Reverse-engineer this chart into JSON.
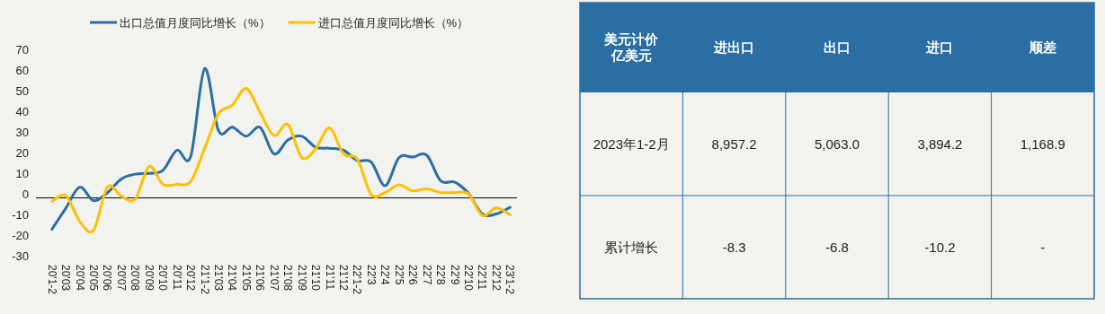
{
  "chart_data": [
    {
      "type": "line",
      "categories": [
        "20'1-2",
        "20'03",
        "20'04",
        "20'05",
        "20'06",
        "20'07",
        "20'08",
        "20'09",
        "20'10",
        "20'11",
        "20'12",
        "21'1-2",
        "21'03",
        "21'04",
        "21'05",
        "21'06",
        "21'07",
        "21'08",
        "21'09",
        "21'10",
        "21'11",
        "21'12",
        "22'1-2",
        "22'3",
        "22'4",
        "22'5",
        "22'6",
        "22'7",
        "22'8",
        "22'9",
        "22'10",
        "22'11",
        "22'12",
        "23'1-2"
      ],
      "series": [
        {
          "name": "出口总值月度同比增长（%）",
          "color": "#2a6ea3",
          "values": [
            -17.2,
            -7,
            3.2,
            -3.3,
            0.5,
            7.2,
            9.5,
            9.9,
            11.4,
            21.1,
            18.1,
            60.6,
            30.6,
            32.3,
            27.9,
            32.2,
            19.3,
            26.1,
            27.9,
            22.6,
            22.1,
            21.1,
            16.1,
            15.4,
            3.9,
            17.5,
            17.8,
            18.7,
            6.3,
            5.7,
            0.3,
            -9.8,
            -9.8,
            -6.6
          ]
        },
        {
          "name": "进口总值月度同比增长（%）",
          "color": "#ffc000",
          "values": [
            -3.7,
            -0.9,
            -13.4,
            -17.7,
            3.2,
            -1.1,
            -2.6,
            13.2,
            4.6,
            4.6,
            6,
            22,
            38.8,
            43,
            51.1,
            39.4,
            28.2,
            33.6,
            17.5,
            21.8,
            31.9,
            19.3,
            16.8,
            -0.4,
            0.6,
            4.3,
            1.4,
            2.4,
            0.6,
            0.6,
            0,
            -10.5,
            -6.9,
            -10.1
          ]
        }
      ],
      "ylim": [
        -30,
        70
      ],
      "yticks": [
        -30,
        -20,
        -10,
        0,
        10,
        20,
        30,
        40,
        50,
        60,
        70
      ],
      "grid": false,
      "legend": "top",
      "marker": "none",
      "line_style": "solid",
      "ref_lines": [
        {
          "axis": "y",
          "value": -2,
          "color": "#000000"
        }
      ]
    },
    {
      "type": "other",
      "categories": [
        "美元计价亿美元",
        "进出口",
        "出口",
        "进口",
        "顺差"
      ],
      "y_categories": [
        "2023年1-2月",
        "累计增长"
      ],
      "cell_labels": [
        [
          "8,957.2",
          "5,063.0",
          "3,894.2",
          "1,168.9"
        ],
        [
          "-8.3",
          "-6.8",
          "-10.2",
          "-"
        ]
      ],
      "color": "#2a6ea3"
    }
  ]
}
